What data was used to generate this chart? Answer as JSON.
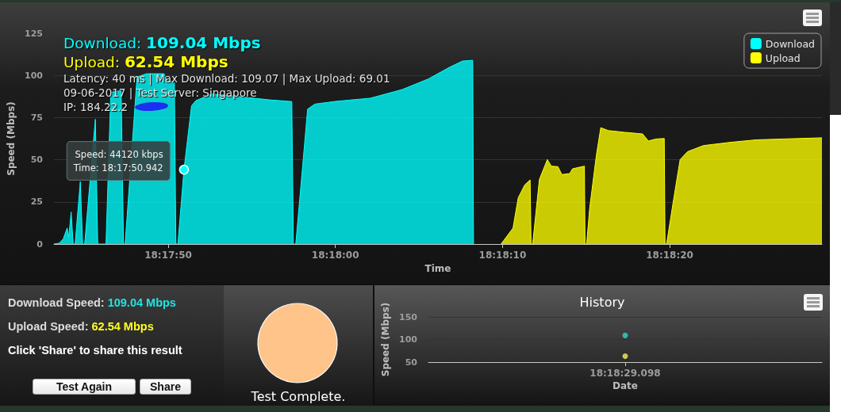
{
  "chart_data": [
    {
      "type": "area",
      "xlabel": "Time",
      "ylabel": "Speed (Mbps)",
      "series": [
        {
          "name": "Download",
          "color": "#00ffff",
          "x": [
            18.295323,
            18.295411,
            18.295477,
            18.295543,
            18.295569,
            18.295609,
            18.295642,
            18.295675,
            18.295761,
            18.2958,
            18.295833,
            18.296011,
            18.296051,
            18.296188,
            18.296268,
            18.29644,
            18.296479,
            18.296506,
            18.296704,
            18.296862,
            18.297152,
            18.297192,
            18.297324,
            18.29735,
            18.297383,
            18.297484,
            18.29761,
            18.29768,
            18.297944,
            18.298379,
            18.298906,
            18.299276,
            18.299302,
            18.299342,
            18.299539,
            18.299658,
            18.3,
            18.300581,
            18.301109,
            18.301544,
            18.3019,
            18.302112,
            18.302283,
            18.302296
          ],
          "values": [
            0,
            0.5,
            3,
            9.5,
            4,
            19,
            0,
            0,
            37,
            0,
            0,
            74,
            0,
            0,
            90,
            91,
            0,
            0,
            99,
            101,
            101,
            97,
            96,
            0,
            0,
            44.12,
            82,
            85,
            89,
            87.5,
            85.5,
            84.5,
            0,
            0,
            80,
            83,
            84.6,
            86.5,
            91.6,
            97.9,
            104.9,
            108.5,
            109,
            0
          ]
        },
        {
          "name": "Upload",
          "color": "#ffff00",
          "x": [
            18.302754,
            18.302952,
            18.303039,
            18.30315,
            18.303237,
            18.303252,
            18.303279,
            18.303391,
            18.303523,
            18.303589,
            18.303698,
            18.303764,
            18.303896,
            18.303941,
            18.304139,
            18.304149,
            18.304176,
            18.304226,
            18.304337,
            18.304411,
            18.304535,
            18.304798,
            18.305106,
            18.305202,
            18.305326,
            18.305466,
            18.305479,
            18.305505,
            18.305633,
            18.30573,
            18.305854,
            18.306117,
            18.306557,
            18.306996,
            18.307436,
            18.308087
          ],
          "values": [
            0,
            9.4,
            27.4,
            35.2,
            38,
            0,
            0,
            38.3,
            50.1,
            46.2,
            45.9,
            41.2,
            41.8,
            44.6,
            46.2,
            0,
            0,
            21.1,
            52.4,
            69,
            67.3,
            66.3,
            65.3,
            61.1,
            62.3,
            62.6,
            0,
            0,
            29,
            50.1,
            54.8,
            58.4,
            60.3,
            61.8,
            62.3,
            63
          ]
        }
      ],
      "xlim": [
        18.295323,
        18.308087
      ],
      "xticks": [
        {
          "value": 18.297222,
          "label": "18:17:50"
        },
        {
          "value": 18.3,
          "label": "18:18:00"
        },
        {
          "value": 18.302778,
          "label": "18:18:10"
        },
        {
          "value": 18.305556,
          "label": "18:18:20"
        }
      ],
      "ylim": [
        0,
        125
      ],
      "yticks": [
        0,
        25,
        50,
        75,
        100,
        125
      ],
      "grid": "y",
      "legend": "top right",
      "annotations": [
        "Download: 109.04 Mbps",
        "Upload: 62.54 Mbps",
        "Latency: 40 ms | Max Download: 109.07 | Max Upload: 69.01",
        "09-06-2017 | Test Server: Singapore",
        "IP: 184.22.2",
        {
          "text": "Speed: 44120 kbps\nTime: 18:17:50.942",
          "x": 18.297484,
          "y": 44.12
        }
      ]
    },
    {
      "type": "other",
      "annotations": [
        "Download Speed: 109.04 Mbps",
        "Upload Speed: 62.54 Mbps",
        "Click 'Share' to share this result",
        "Test Again",
        "Share"
      ]
    },
    {
      "type": "pie",
      "categories": [
        null
      ],
      "values": [
        100
      ],
      "colors": [
        "#ffc48a"
      ],
      "annotations": [
        "Test Complete."
      ]
    },
    {
      "type": "scatter",
      "title": "History",
      "xlabel": "Date",
      "ylabel": "Speed (Mbps)",
      "categories": [
        "18:18:29.098"
      ],
      "series": [
        {
          "color": "#20e0c0",
          "values": [
            109
          ]
        },
        {
          "color": "#f0f060",
          "values": [
            63
          ]
        }
      ],
      "ylim": [
        50,
        150
      ],
      "yticks": [
        50,
        100,
        150
      ],
      "grid": "y",
      "marker": "circle"
    }
  ]
}
